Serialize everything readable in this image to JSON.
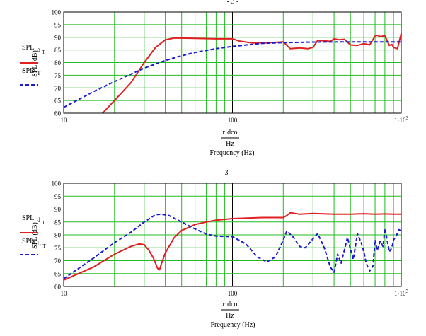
{
  "charts": [
    {
      "top_marker": "- 3 -",
      "ylabel": "SPL (dB)",
      "ylim": [
        60,
        100
      ],
      "y_ticks": [
        "60",
        "65",
        "70",
        "75",
        "80",
        "85",
        "90",
        "95",
        "100"
      ],
      "x_ticks": [
        {
          "value": 10,
          "label": "10",
          "sup": ""
        },
        {
          "value": 100,
          "label": "100",
          "sup": ""
        },
        {
          "value": 1000,
          "label": "1·10",
          "sup": "3"
        }
      ],
      "x_expr": {
        "numerator": "r·dco",
        "denominator": "Hz"
      },
      "xlabel": "Frequency (Hz)",
      "legend": [
        {
          "main": "SPL",
          "sub": "o",
          "subsub": "T",
          "color": "#e02020",
          "style": "solid"
        },
        {
          "main": "SPL",
          "sub": "T",
          "subsub": "",
          "color": "#1a1ad0",
          "style": "dashed"
        }
      ]
    },
    {
      "top_marker": "- 3 -",
      "ylabel": "SPL (dB)",
      "ylim": [
        60,
        100
      ],
      "y_ticks": [
        "60",
        "65",
        "70",
        "75",
        "80",
        "85",
        "90",
        "95",
        "100"
      ],
      "x_ticks": [
        {
          "value": 10,
          "label": "10",
          "sup": ""
        },
        {
          "value": 100,
          "label": "100",
          "sup": ""
        },
        {
          "value": 1000,
          "label": "1·10",
          "sup": "3"
        }
      ],
      "x_expr": {
        "numerator": "r·dco",
        "denominator": "Hz"
      },
      "xlabel": "Frequency (Hz)",
      "legend": [
        {
          "main": "SPL",
          "sub": "d",
          "subsub": "T",
          "color": "#e02020",
          "style": "solid"
        },
        {
          "main": "SPL",
          "sub": "L",
          "subsub": "T",
          "color": "#1a1ad0",
          "style": "dashed"
        }
      ]
    }
  ],
  "chart_data": [
    {
      "type": "line",
      "xscale": "log",
      "xlim": [
        10,
        1000
      ],
      "ylim": [
        60,
        100
      ],
      "grid": true,
      "legend_placement": "left",
      "series": [
        {
          "name": "SPL oT",
          "color": "#e02020",
          "dash": "solid",
          "x": [
            17,
            20,
            25,
            30,
            35,
            40,
            45,
            60,
            80,
            100,
            110,
            130,
            160,
            200,
            220,
            250,
            280,
            300,
            320,
            350,
            380,
            400,
            430,
            460,
            500,
            550,
            600,
            650,
            700,
            720,
            750,
            800,
            850,
            880,
            900,
            950,
            1000
          ],
          "y": [
            60,
            65,
            72,
            80,
            86,
            89,
            89.7,
            89.6,
            89.4,
            89.4,
            88.5,
            87.8,
            87.8,
            88.2,
            85.5,
            85.8,
            85.5,
            86,
            88.8,
            88.6,
            88.4,
            89.4,
            89,
            89.2,
            87,
            86.8,
            87.5,
            87,
            90.5,
            90.8,
            90.3,
            90.6,
            86.8,
            87.2,
            86,
            85.5,
            91.5
          ]
        },
        {
          "name": "SPL T",
          "color": "#1a1ad0",
          "dash": "dashed",
          "x": [
            10,
            15,
            20,
            30,
            40,
            50,
            60,
            80,
            100,
            150,
            200,
            300,
            500,
            700,
            1000
          ],
          "y": [
            62.3,
            68.5,
            72.5,
            77.8,
            80.8,
            82.7,
            84,
            85.5,
            86.4,
            87.6,
            87.9,
            88.1,
            88.2,
            88.2,
            88.2
          ]
        }
      ]
    },
    {
      "type": "line",
      "xscale": "log",
      "xlim": [
        10,
        1000
      ],
      "ylim": [
        60,
        100
      ],
      "grid": true,
      "legend_placement": "left",
      "series": [
        {
          "name": "SPL dT",
          "color": "#e02020",
          "dash": "solid",
          "x": [
            10,
            15,
            20,
            25,
            28,
            30,
            32,
            34,
            36,
            37,
            38,
            40,
            45,
            50,
            60,
            70,
            80,
            100,
            150,
            200,
            210,
            220,
            250,
            300,
            400,
            500,
            600,
            700,
            800,
            900,
            1000
          ],
          "y": [
            62.5,
            67.5,
            72.5,
            75.5,
            76.5,
            76.2,
            74,
            71,
            67,
            66.5,
            69,
            73,
            78.8,
            81.7,
            84,
            85,
            85.7,
            86.3,
            86.7,
            86.7,
            87.5,
            88.6,
            88,
            88.3,
            88,
            88,
            88.2,
            88,
            88.1,
            88,
            88
          ]
        },
        {
          "name": "SPL LT",
          "color": "#1a1ad0",
          "dash": "dashed",
          "x": [
            10,
            15,
            20,
            25,
            30,
            35,
            38,
            42,
            50,
            60,
            70,
            80,
            100,
            120,
            140,
            160,
            180,
            200,
            210,
            230,
            250,
            270,
            300,
            320,
            350,
            380,
            400,
            420,
            440,
            460,
            480,
            500,
            520,
            550,
            580,
            600,
            620,
            650,
            680,
            700,
            720,
            750,
            780,
            800,
            820,
            850,
            880,
            900,
            940,
            970,
            1000
          ],
          "y": [
            63,
            71,
            77,
            81,
            85,
            87.8,
            88,
            87.5,
            85,
            82.3,
            80.3,
            79.5,
            79.3,
            76.5,
            71.5,
            69.5,
            71.5,
            78,
            81.5,
            79,
            75.5,
            75,
            78.5,
            80.5,
            75,
            67.5,
            65.5,
            72.5,
            69,
            74,
            79,
            74.5,
            70.5,
            80.5,
            76.8,
            73.5,
            69,
            66,
            68,
            78,
            74,
            77.5,
            75.5,
            82.5,
            79,
            73.5,
            75,
            78,
            80,
            82,
            81.5
          ]
        }
      ]
    }
  ]
}
